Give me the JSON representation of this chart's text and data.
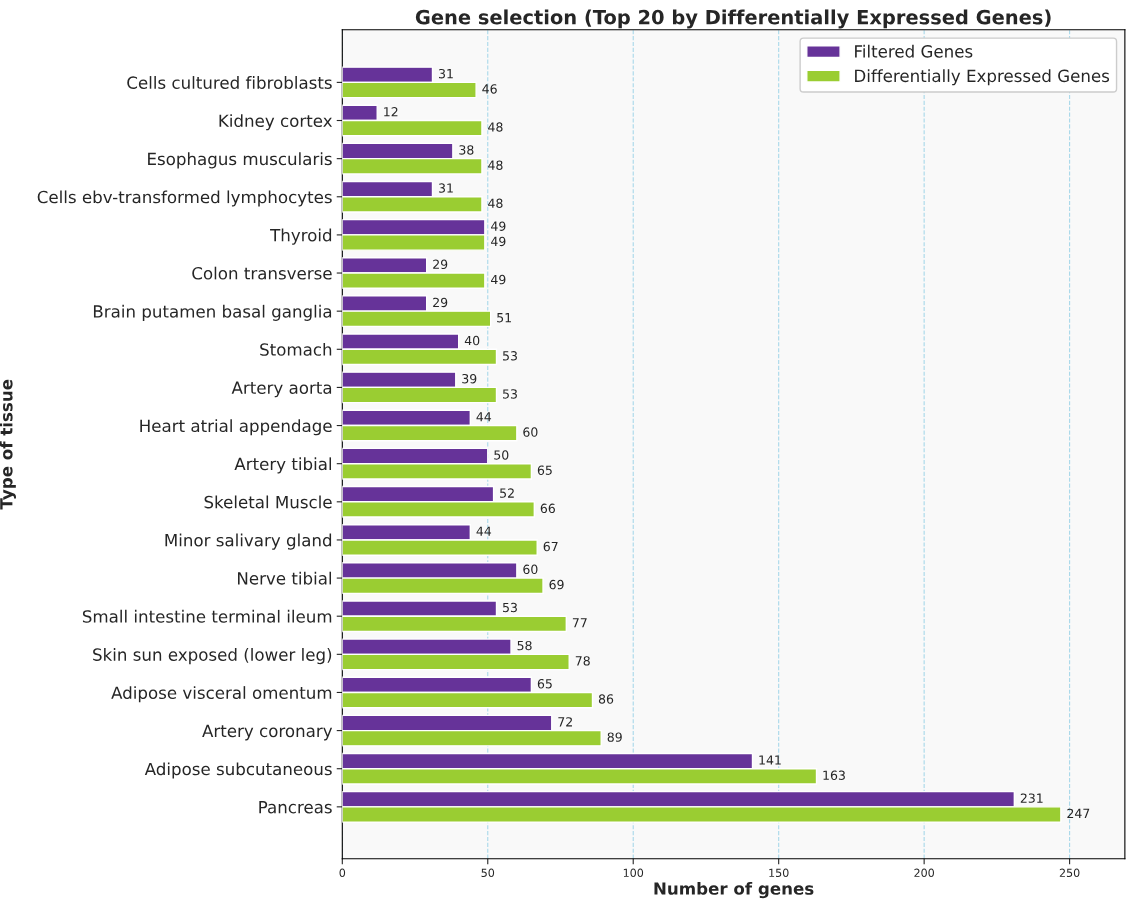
{
  "chart_data": {
    "type": "bar",
    "orientation": "horizontal",
    "title": "Gene selection (Top 20 by Differentially Expressed Genes)",
    "xlabel": "Number of genes",
    "ylabel": "Type of tissue",
    "categories": [
      "Cells cultured fibroblasts",
      "Kidney cortex",
      "Esophagus muscularis",
      "Cells ebv-transformed lymphocytes",
      "Thyroid",
      "Colon transverse",
      "Brain putamen basal ganglia",
      "Stomach",
      "Artery aorta",
      "Heart atrial appendage",
      "Artery tibial",
      "Skeletal Muscle",
      "Minor salivary gland",
      "Nerve tibial",
      "Small intestine terminal ileum",
      "Skin sun exposed (lower leg)",
      "Adipose visceral omentum",
      "Artery coronary",
      "Adipose subcutaneous",
      "Pancreas"
    ],
    "series": [
      {
        "name": "Filtered Genes",
        "color": "#663399",
        "values": [
          31,
          12,
          38,
          31,
          49,
          29,
          29,
          40,
          39,
          44,
          50,
          52,
          44,
          60,
          53,
          58,
          65,
          72,
          141,
          231
        ]
      },
      {
        "name": "Differentially Expressed Genes",
        "color": "#9acd32",
        "values": [
          46,
          48,
          48,
          48,
          49,
          49,
          51,
          53,
          53,
          60,
          65,
          66,
          67,
          69,
          77,
          78,
          86,
          89,
          163,
          247
        ]
      }
    ],
    "xlim": [
      0,
      269
    ],
    "xticks": [
      0,
      50,
      100,
      150,
      200,
      250
    ],
    "grid": "x",
    "legend": "top right",
    "data_labels": true
  }
}
